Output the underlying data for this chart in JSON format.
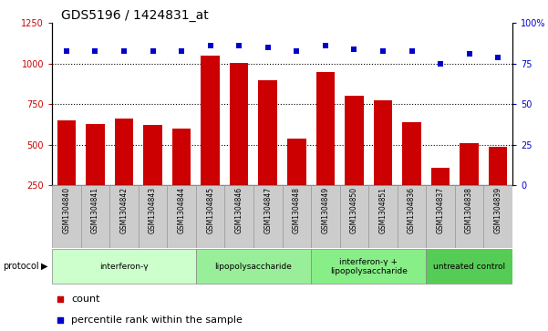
{
  "title": "GDS5196 / 1424831_at",
  "samples": [
    "GSM1304840",
    "GSM1304841",
    "GSM1304842",
    "GSM1304843",
    "GSM1304844",
    "GSM1304845",
    "GSM1304846",
    "GSM1304847",
    "GSM1304848",
    "GSM1304849",
    "GSM1304850",
    "GSM1304851",
    "GSM1304836",
    "GSM1304837",
    "GSM1304838",
    "GSM1304839"
  ],
  "counts": [
    650,
    630,
    660,
    620,
    600,
    1050,
    1005,
    900,
    540,
    950,
    800,
    775,
    640,
    360,
    510,
    490
  ],
  "percentile_ranks": [
    83,
    83,
    83,
    83,
    83,
    86,
    86,
    85,
    83,
    86,
    84,
    83,
    83,
    75,
    81,
    79
  ],
  "groups": [
    {
      "label": "interferon-γ",
      "start": 0,
      "end": 5,
      "color": "#ccffcc"
    },
    {
      "label": "lipopolysaccharide",
      "start": 5,
      "end": 9,
      "color": "#99ee99"
    },
    {
      "label": "interferon-γ +\nlipopolysaccharide",
      "start": 9,
      "end": 13,
      "color": "#88ee88"
    },
    {
      "label": "untreated control",
      "start": 13,
      "end": 16,
      "color": "#55cc55"
    }
  ],
  "bar_color": "#cc0000",
  "dot_color": "#0000cc",
  "left_ylim": [
    250,
    1250
  ],
  "left_yticks": [
    250,
    500,
    750,
    1000,
    1250
  ],
  "right_ylim": [
    0,
    100
  ],
  "right_yticks": [
    0,
    25,
    50,
    75,
    100
  ],
  "right_yticklabels": [
    "0",
    "25",
    "50",
    "75",
    "100%"
  ],
  "grid_values": [
    500,
    750,
    1000
  ],
  "bar_color_red": "#cc0000",
  "xlabel_color": "#cc0000",
  "title_fontsize": 10,
  "tick_fontsize": 7,
  "label_fontsize": 8,
  "sample_box_color": "#cccccc",
  "group_colors": [
    "#ccffcc",
    "#88dd88",
    "#55cc55",
    "#22bb22"
  ]
}
